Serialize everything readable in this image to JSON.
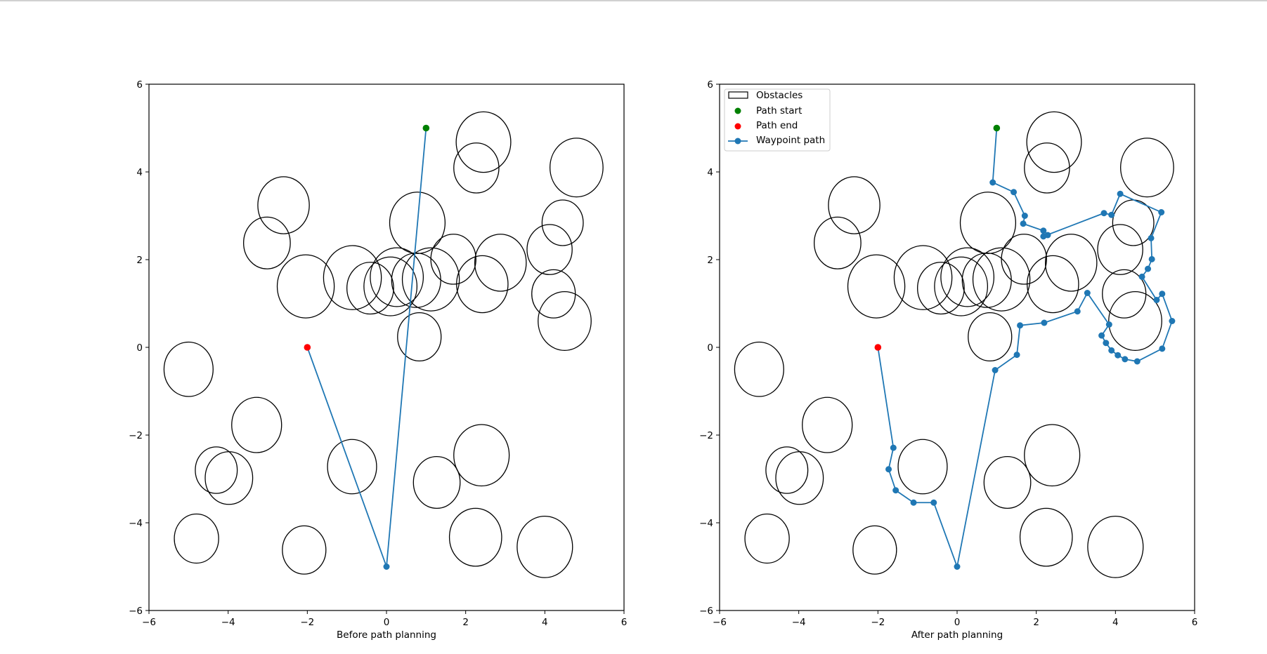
{
  "colors": {
    "path": "#1f77b4",
    "start": "#008000",
    "end": "#ff0000",
    "obstacle": "#000000"
  },
  "chart_data": [
    {
      "type": "scatter",
      "id": "before",
      "title": "",
      "xlabel": "Before path planning",
      "ylabel": "",
      "xlim": [
        -6,
        6
      ],
      "ylim": [
        -6,
        6
      ],
      "xticks": [
        -6,
        -4,
        -2,
        0,
        2,
        4,
        6
      ],
      "yticks": [
        -6,
        -4,
        -2,
        0,
        2,
        4,
        6
      ],
      "tick_labels": [
        "−6",
        "−4",
        "−2",
        "0",
        "2",
        "4",
        "6"
      ],
      "legend": null,
      "start": [
        1,
        5
      ],
      "end": [
        -2,
        0
      ],
      "path": [
        [
          1,
          5
        ],
        [
          0,
          -5
        ],
        [
          -2,
          0
        ]
      ]
    },
    {
      "type": "scatter",
      "id": "after",
      "title": "",
      "xlabel": "After path planning",
      "ylabel": "",
      "xlim": [
        -6,
        6
      ],
      "ylim": [
        -6,
        6
      ],
      "xticks": [
        -6,
        -4,
        -2,
        0,
        2,
        4,
        6
      ],
      "yticks": [
        -6,
        -4,
        -2,
        0,
        2,
        4,
        6
      ],
      "tick_labels": [
        "−6",
        "−4",
        "−2",
        "0",
        "2",
        "4",
        "6"
      ],
      "legend": {
        "placement": "top-left",
        "entries": [
          "Obstacles",
          "Path start",
          "Path end",
          "Waypoint path"
        ]
      },
      "start": [
        1,
        5
      ],
      "end": [
        -2,
        0
      ],
      "path": [
        [
          1,
          5
        ],
        [
          0.9,
          3.76
        ],
        [
          1.43,
          3.54
        ],
        [
          1.71,
          3.0
        ],
        [
          1.67,
          2.82
        ],
        [
          2.18,
          2.66
        ],
        [
          2.29,
          2.56
        ],
        [
          2.18,
          2.53
        ],
        [
          3.71,
          3.06
        ],
        [
          3.9,
          3.02
        ],
        [
          4.12,
          3.5
        ],
        [
          5.16,
          3.08
        ],
        [
          4.9,
          2.49
        ],
        [
          4.92,
          2.01
        ],
        [
          4.82,
          1.79
        ],
        [
          4.67,
          1.61
        ],
        [
          5.04,
          1.08
        ],
        [
          5.18,
          1.22
        ],
        [
          5.43,
          0.6
        ],
        [
          5.18,
          -0.03
        ],
        [
          4.55,
          -0.32
        ],
        [
          4.24,
          -0.27
        ],
        [
          4.06,
          -0.18
        ],
        [
          3.9,
          -0.07
        ],
        [
          3.76,
          0.1
        ],
        [
          3.65,
          0.27
        ],
        [
          3.84,
          0.52
        ],
        [
          3.29,
          1.24
        ],
        [
          3.04,
          0.82
        ],
        [
          2.2,
          0.56
        ],
        [
          1.59,
          0.5
        ],
        [
          1.51,
          -0.17
        ],
        [
          0.96,
          -0.52
        ],
        [
          0,
          -5
        ],
        [
          -0.59,
          -3.54
        ],
        [
          -1.1,
          -3.54
        ],
        [
          -1.55,
          -3.26
        ],
        [
          -1.73,
          -2.78
        ],
        [
          -1.61,
          -2.29
        ],
        [
          -2,
          0
        ]
      ]
    }
  ],
  "obstacles": [
    [
      2.45,
      4.68,
      0.69
    ],
    [
      2.27,
      4.09,
      0.57
    ],
    [
      4.8,
      4.1,
      0.67
    ],
    [
      -2.6,
      3.24,
      0.65
    ],
    [
      -3.02,
      2.38,
      0.59
    ],
    [
      4.45,
      2.84,
      0.52
    ],
    [
      0.78,
      2.84,
      0.7
    ],
    [
      4.12,
      2.23,
      0.57
    ],
    [
      -2.04,
      1.39,
      0.72
    ],
    [
      -0.86,
      1.59,
      0.73
    ],
    [
      -0.41,
      1.35,
      0.59
    ],
    [
      0.1,
      1.39,
      0.67
    ],
    [
      0.26,
      1.6,
      0.67
    ],
    [
      0.75,
      1.53,
      0.62
    ],
    [
      1.12,
      1.55,
      0.72
    ],
    [
      1.69,
      2.01,
      0.57
    ],
    [
      2.88,
      1.93,
      0.65
    ],
    [
      2.42,
      1.44,
      0.65
    ],
    [
      4.22,
      1.22,
      0.55
    ],
    [
      4.5,
      0.6,
      0.67
    ],
    [
      0.83,
      0.24,
      0.55
    ],
    [
      -5.0,
      -0.5,
      0.62
    ],
    [
      -3.28,
      -1.77,
      0.63
    ],
    [
      -4.3,
      -2.8,
      0.53
    ],
    [
      -3.98,
      -2.98,
      0.6
    ],
    [
      -0.87,
      -2.72,
      0.62
    ],
    [
      2.4,
      -2.46,
      0.7
    ],
    [
      1.27,
      -3.08,
      0.59
    ],
    [
      -4.8,
      -4.36,
      0.56
    ],
    [
      -2.08,
      -4.62,
      0.55
    ],
    [
      2.25,
      -4.33,
      0.66
    ],
    [
      4.0,
      -4.55,
      0.7
    ]
  ]
}
